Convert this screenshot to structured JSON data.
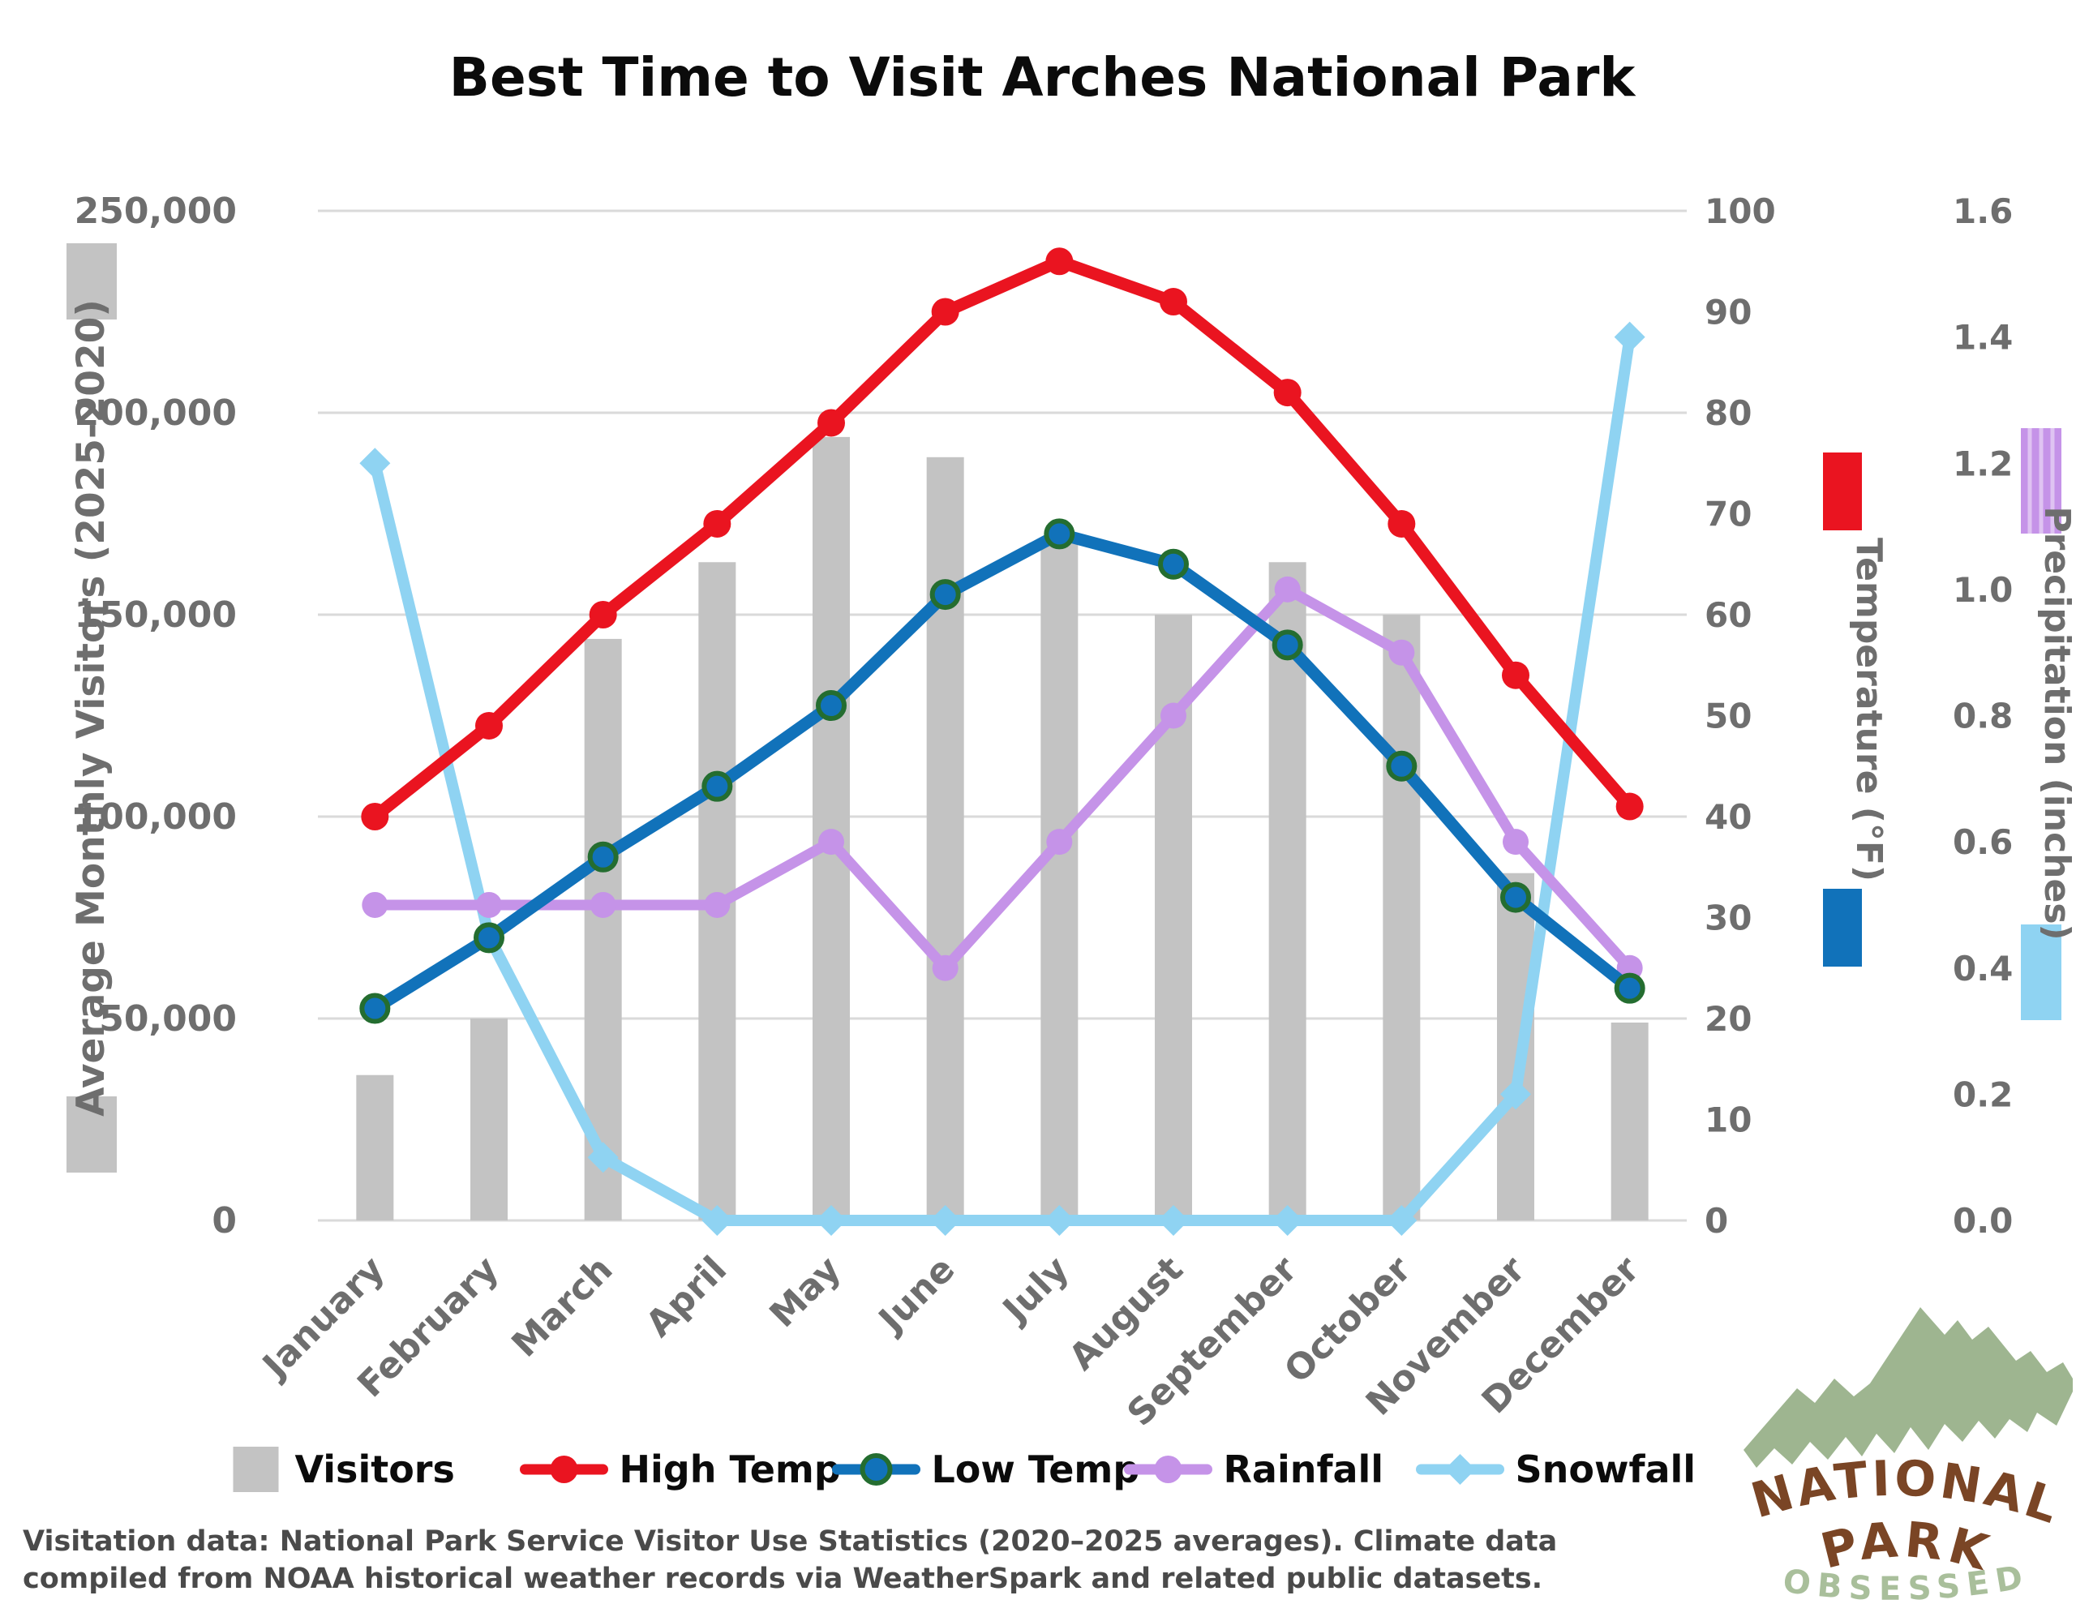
{
  "title": "Best Time to Visit Arches National Park",
  "footer": {
    "line1": "Visitation data: National Park Service Visitor Use Statistics (2020–2025 averages). Climate data",
    "line2": "compiled from NOAA historical weather records via WeatherSpark and related public datasets."
  },
  "logo": {
    "word1": "NATIONAL",
    "word2": "PARK",
    "word3": "OBSESSED"
  },
  "colors": {
    "bar_gray": "#c3c3c3",
    "high_temp_red": "#ea1420",
    "low_temp_blue": "#1172ba",
    "low_temp_ring_green": "#246d30",
    "rainfall_purple": "#c593e8",
    "snowfall_sky": "#8fd3f2",
    "gridline": "#dadada",
    "tick_text": "#6e6e6e",
    "footer_text": "#4a4a4a",
    "logo_green": "#9eb590",
    "logo_brown": "#7a4525"
  },
  "legend": [
    {
      "label": "Visitors",
      "marker": "square",
      "color": "#c3c3c3"
    },
    {
      "label": "High Temp",
      "marker": "line-circle",
      "color": "#ea1420"
    },
    {
      "label": "Low Temp",
      "marker": "line-circle-ring",
      "color": "#1172ba"
    },
    {
      "label": "Rainfall",
      "marker": "line-circle",
      "color": "#c593e8"
    },
    {
      "label": "Snowfall",
      "marker": "line-diamond",
      "color": "#8fd3f2"
    }
  ],
  "axes": {
    "visitors": {
      "title": "Average Monthly Visitors (2025-2020)",
      "ticks": [
        0,
        50000,
        100000,
        150000,
        200000,
        250000
      ],
      "range": [
        0,
        250000
      ]
    },
    "temperature": {
      "title": "Temperature (°F)",
      "ticks": [
        0,
        10,
        20,
        30,
        40,
        50,
        60,
        70,
        80,
        90,
        100
      ],
      "range": [
        0,
        100
      ]
    },
    "precipitation": {
      "title": "Precipitation (inches)",
      "ticks": [
        0.0,
        0.2,
        0.4,
        0.6,
        0.8,
        1.0,
        1.2,
        1.4,
        1.6
      ],
      "range": [
        0,
        1.6
      ]
    }
  },
  "chart_data": {
    "type": "combo",
    "categories": [
      "January",
      "February",
      "March",
      "April",
      "May",
      "June",
      "July",
      "August",
      "September",
      "October",
      "November",
      "December"
    ],
    "series": [
      {
        "name": "Visitors",
        "type": "bar",
        "axis": "visitors",
        "values": [
          36000,
          50000,
          144000,
          163000,
          194000,
          189000,
          168000,
          150000,
          163000,
          150000,
          86000,
          49000
        ]
      },
      {
        "name": "High Temp",
        "type": "line",
        "axis": "temperature",
        "marker": "circle",
        "values": [
          40,
          49,
          60,
          69,
          79,
          90,
          95,
          91,
          82,
          69,
          54,
          41
        ]
      },
      {
        "name": "Low Temp",
        "type": "line",
        "axis": "temperature",
        "marker": "circle-ring",
        "values": [
          21,
          28,
          36,
          43,
          51,
          62,
          68,
          65,
          57,
          45,
          32,
          23
        ]
      },
      {
        "name": "Rainfall",
        "type": "line",
        "axis": "precipitation",
        "marker": "circle",
        "values": [
          0.5,
          0.5,
          0.5,
          0.5,
          0.6,
          0.4,
          0.6,
          0.8,
          1.0,
          0.9,
          0.6,
          0.4
        ]
      },
      {
        "name": "Snowfall",
        "type": "line",
        "axis": "precipitation",
        "marker": "diamond",
        "values": [
          1.2,
          0.45,
          0.1,
          0,
          0,
          0,
          0,
          0,
          0,
          0,
          0.2,
          1.4
        ]
      }
    ],
    "title": "Best Time to Visit Arches National Park",
    "xlabel": "",
    "ylabel_left": "Average Monthly Visitors (2025-2020)",
    "ylabel_right1": "Temperature (°F)",
    "ylabel_right2": "Precipitation (inches)",
    "ylim_visitors": [
      0,
      250000
    ],
    "ylim_temperature": [
      0,
      100
    ],
    "ylim_precipitation": [
      0,
      1.6
    ],
    "grid": true,
    "legend_position": "bottom"
  }
}
